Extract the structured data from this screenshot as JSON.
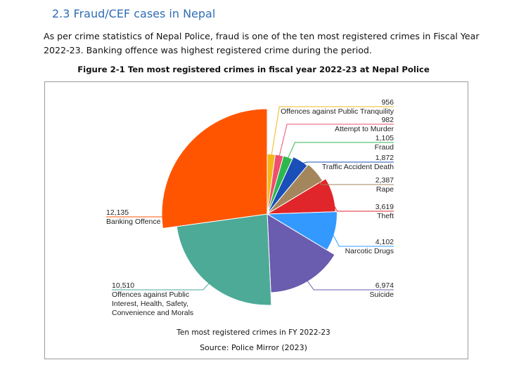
{
  "section": {
    "heading": "2.3 Fraud/CEF cases in Nepal",
    "paragraph": "As per crime statistics of Nepal Police, fraud is one of the ten most registered crimes in Fiscal Year 2022-23. Banking offence was highest registered crime during the period."
  },
  "figure": {
    "caption": "Figure 2-1 Ten most registered crimes in fiscal year 2022-23 at Nepal Police",
    "chart_title": "Ten most registered crimes in FY 2022-23",
    "source": "Source: Police Mirror (2023)"
  },
  "chart_data": {
    "type": "pie",
    "title": "Ten most registered crimes in FY 2022-23",
    "slices": [
      {
        "label": "Banking Offence",
        "value": 12135,
        "value_label": "12,135",
        "color": "#ff5500"
      },
      {
        "label": "Offences against Public Interest, Health, Safety, Convenience and Morals",
        "value": 10510,
        "value_label": "10,510",
        "color": "#4daa97"
      },
      {
        "label": "Suicide",
        "value": 6974,
        "value_label": "6,974",
        "color": "#6a5caf"
      },
      {
        "label": "Narcotic Drugs",
        "value": 4102,
        "value_label": "4,102",
        "color": "#3399ff"
      },
      {
        "label": "Theft",
        "value": 3619,
        "value_label": "3,619",
        "color": "#e0262a"
      },
      {
        "label": "Rape",
        "value": 2387,
        "value_label": "2,387",
        "color": "#a4865c"
      },
      {
        "label": "Traffic Accident Death",
        "value": 1872,
        "value_label": "1,872",
        "color": "#1b4fb8"
      },
      {
        "label": "Fraud",
        "value": 1105,
        "value_label": "1,105",
        "color": "#2db84d"
      },
      {
        "label": "Attempt to Murder",
        "value": 982,
        "value_label": "982",
        "color": "#f04e6e"
      },
      {
        "label": "Offences against Public Tranquility",
        "value": 956,
        "value_label": "956",
        "color": "#f2b71c"
      }
    ]
  }
}
